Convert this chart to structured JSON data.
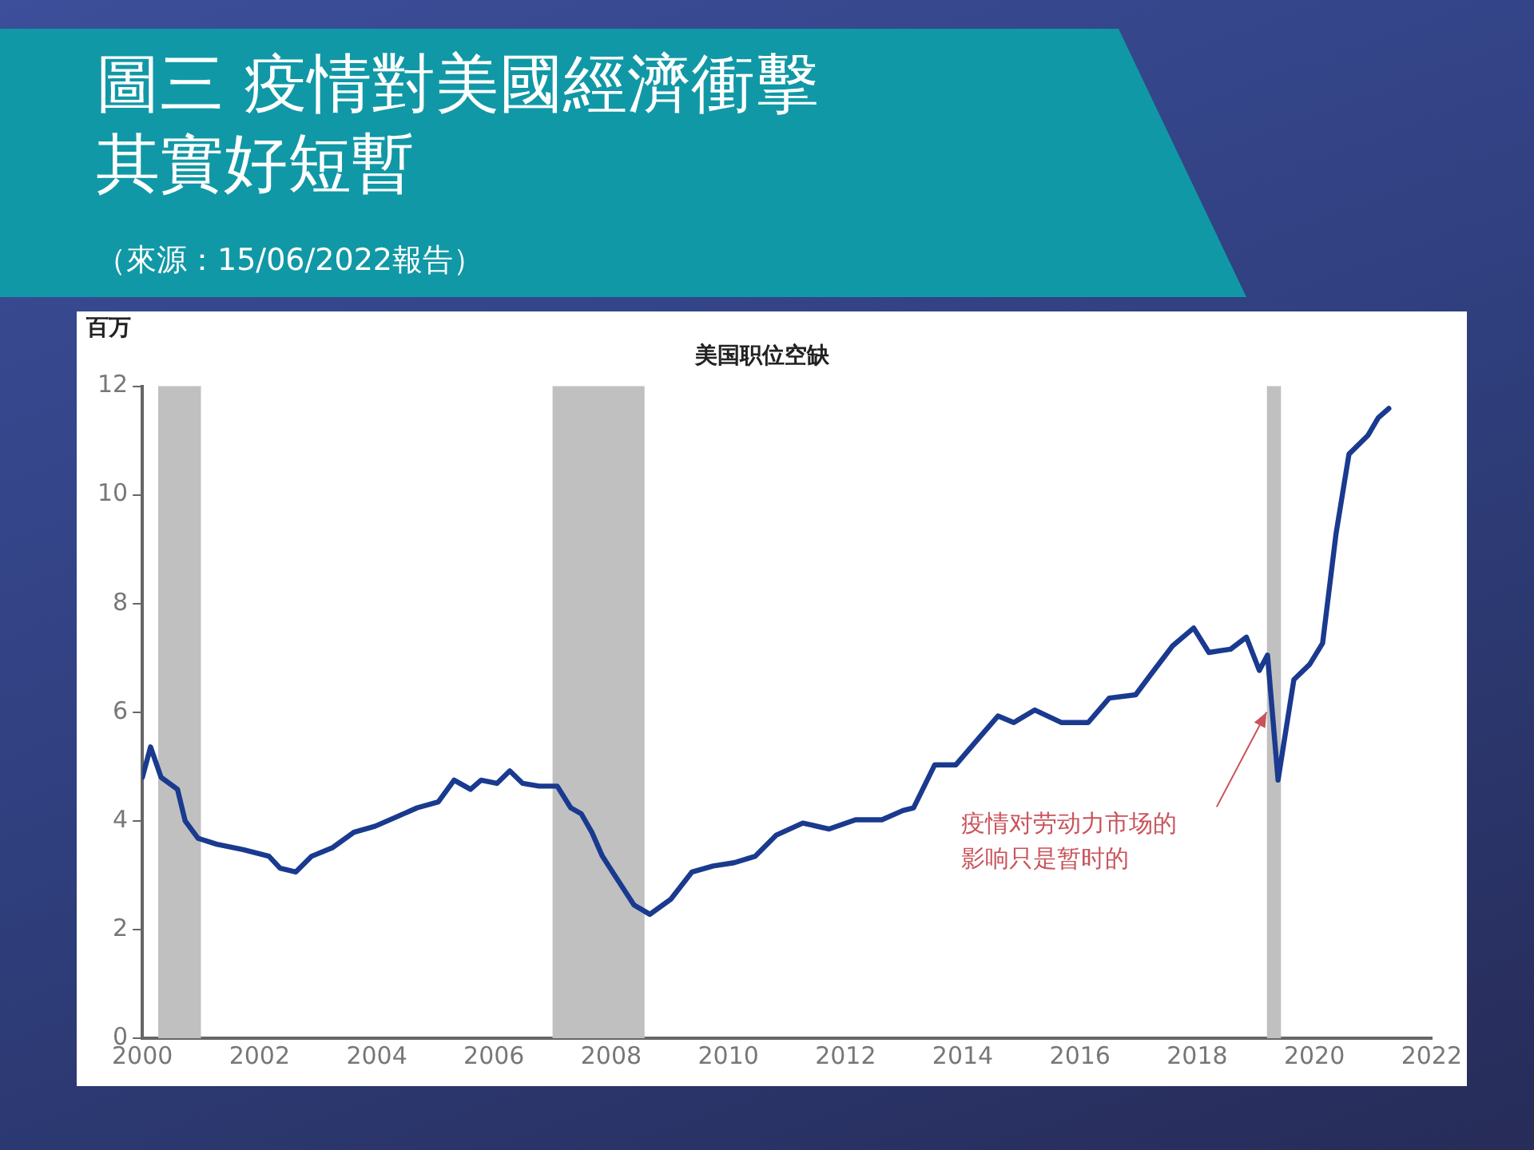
{
  "chart_data": {
    "type": "line",
    "title": "圖三 疫情對美國經濟衝擊其實好短暫",
    "subtitle": "美国职位空缺",
    "ylabel": "百万",
    "annotations": [
      "疫情对劳动力市场的影响只是暂时的",
      "（來源：15/06/2022報告）"
    ],
    "x": [
      2000.0,
      2000.14,
      2000.32,
      2000.6,
      2000.73,
      2000.95,
      2001.27,
      2001.72,
      2002.16,
      2002.35,
      2002.62,
      2002.89,
      2003.25,
      2003.61,
      2003.97,
      2004.33,
      2004.69,
      2005.05,
      2005.32,
      2005.6,
      2005.78,
      2006.05,
      2006.27,
      2006.49,
      2006.77,
      2007.08,
      2007.31,
      2007.49,
      2007.67,
      2007.85,
      2008.12,
      2008.39,
      2008.66,
      2009.02,
      2009.38,
      2009.74,
      2010.1,
      2010.46,
      2010.82,
      2011.27,
      2011.72,
      2012.17,
      2012.62,
      2012.98,
      2013.16,
      2013.52,
      2013.88,
      2014.24,
      2014.6,
      2014.87,
      2015.23,
      2015.68,
      2016.14,
      2016.5,
      2016.95,
      2017.22,
      2017.58,
      2017.94,
      2018.2,
      2018.57,
      2018.84,
      2019.06,
      2019.2,
      2019.38,
      2019.65,
      2019.92,
      2020.14,
      2020.37,
      2020.59,
      2020.91,
      2021.09,
      2021.27
    ],
    "series": [
      {
        "color": "#1a3a8f",
        "values": [
          4.8,
          5.36,
          4.8,
          4.58,
          4.0,
          3.68,
          3.57,
          3.47,
          3.35,
          3.13,
          3.06,
          3.35,
          3.51,
          3.79,
          3.9,
          4.07,
          4.24,
          4.35,
          4.75,
          4.58,
          4.75,
          4.69,
          4.92,
          4.69,
          4.64,
          4.64,
          4.24,
          4.13,
          3.79,
          3.35,
          2.9,
          2.45,
          2.28,
          2.56,
          3.06,
          3.17,
          3.23,
          3.35,
          3.74,
          3.96,
          3.85,
          4.02,
          4.02,
          4.19,
          4.24,
          5.03,
          5.03,
          5.48,
          5.93,
          5.81,
          6.04,
          5.81,
          5.81,
          6.26,
          6.32,
          6.71,
          7.22,
          7.55,
          7.1,
          7.16,
          7.38,
          6.77,
          7.05,
          4.75,
          6.6,
          6.88,
          7.27,
          9.29,
          10.75,
          11.09,
          11.42,
          11.59
        ]
      }
    ],
    "xlim": [
      2000,
      2022
    ],
    "xticks": [
      2000,
      2002,
      2004,
      2006,
      2008,
      2010,
      2012,
      2014,
      2016,
      2018,
      2020,
      2022
    ],
    "ylim": [
      0,
      12
    ],
    "yticks": [
      0,
      2,
      4,
      6,
      8,
      10,
      12
    ],
    "bands": [
      {
        "axis": "x",
        "from": 2000.27,
        "to": 2001.0,
        "color": "#c0c0c0"
      },
      {
        "axis": "x",
        "from": 2007.0,
        "to": 2008.57,
        "color": "#c0c0c0"
      },
      {
        "axis": "x",
        "from": 2019.19,
        "to": 2019.43,
        "color": "#c0c0c0"
      }
    ],
    "grid": false,
    "legend": false,
    "marker": "none",
    "line_style": "solid"
  }
}
